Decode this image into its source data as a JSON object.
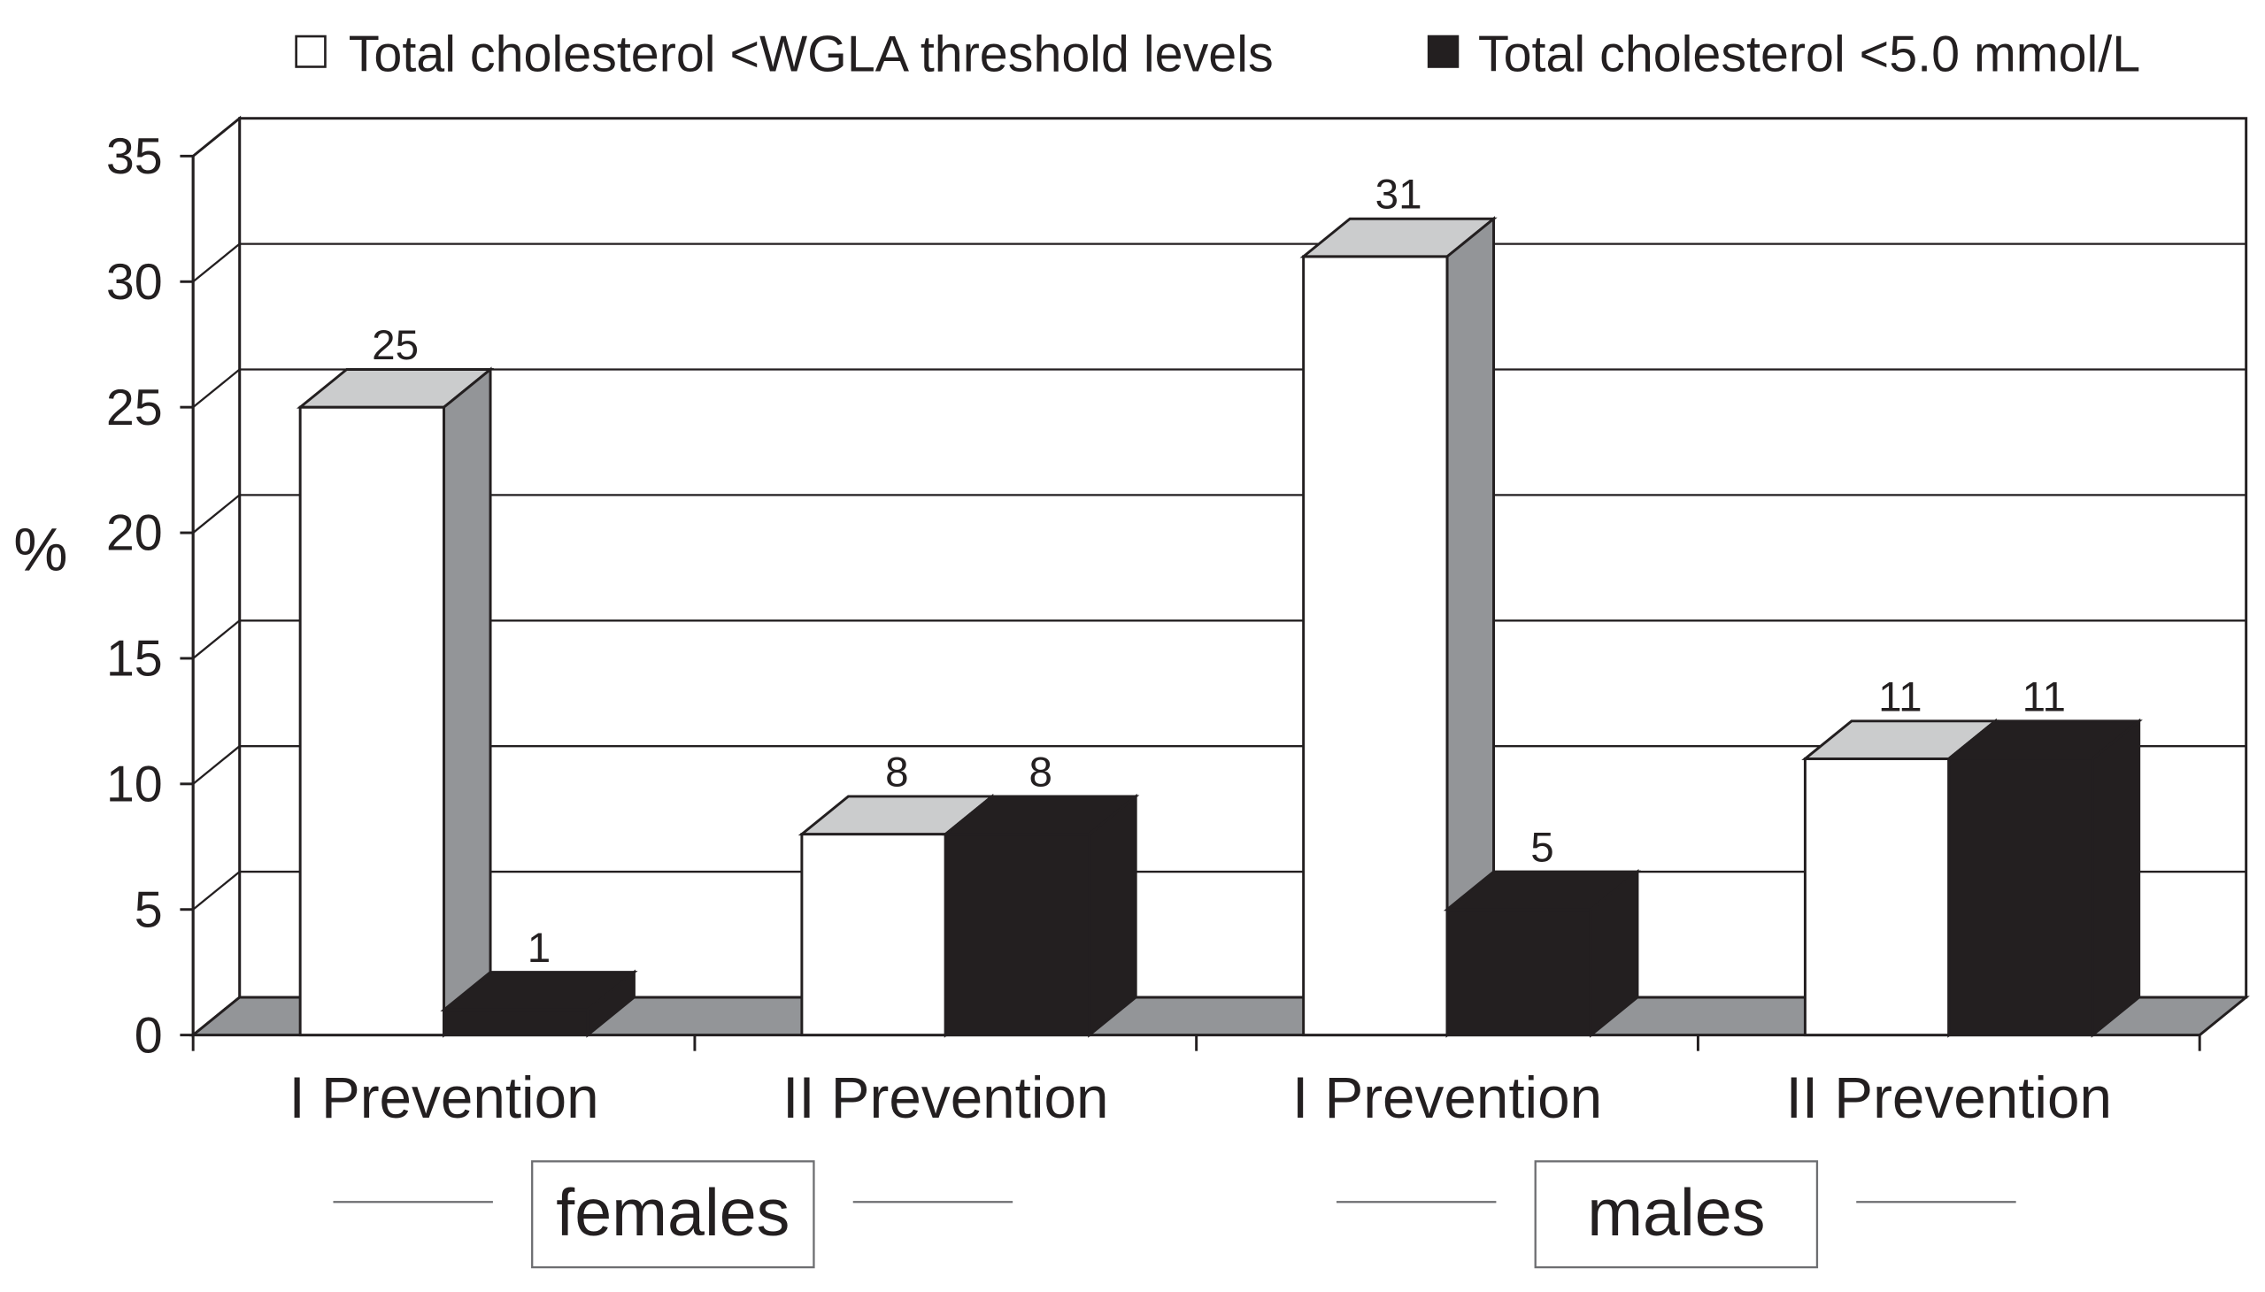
{
  "chart_data": {
    "type": "bar",
    "subtype": "3d-clustered-column",
    "categories": [
      "I Prevention",
      "II Prevention",
      "I Prevention",
      "II Prevention"
    ],
    "groups": [
      {
        "label": "females",
        "category_indices": [
          0,
          1
        ]
      },
      {
        "label": "males",
        "category_indices": [
          2,
          3
        ]
      }
    ],
    "series": [
      {
        "name": "Total cholesterol <WGLA threshold levels",
        "values": [
          25,
          8,
          31,
          11
        ],
        "color": "#ffffff",
        "top_color": "#cbcccd",
        "side_color": "#939598"
      },
      {
        "name": "Total cholesterol <5.0 mmol/L",
        "values": [
          1,
          8,
          5,
          11
        ],
        "color": "#231f20",
        "top_color": "#231f20",
        "side_color": "#231f20"
      }
    ],
    "ylabel": "%",
    "ylim": [
      0,
      35
    ],
    "yticks": [
      0,
      5,
      10,
      15,
      20,
      25,
      30,
      35
    ],
    "grid": true,
    "legend": "top",
    "data_labels": true
  },
  "colors": {
    "floor": "#939598",
    "wall": "#ffffff",
    "line": "#231f20",
    "group_rule": "#6d6e71"
  }
}
